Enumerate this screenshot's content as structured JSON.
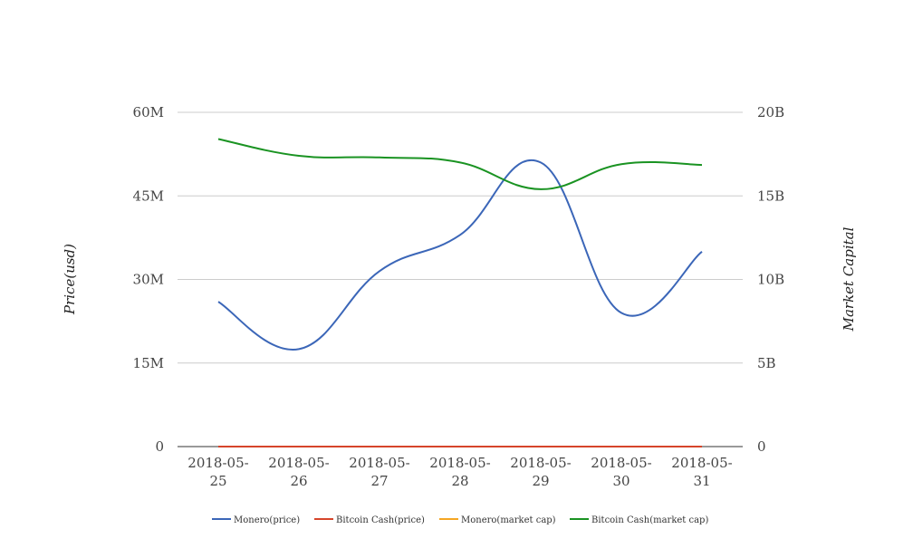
{
  "chart_data": {
    "type": "line",
    "categories": [
      "2018-05-25",
      "2018-05-26",
      "2018-05-27",
      "2018-05-28",
      "2018-05-29",
      "2018-05-30",
      "2018-05-31"
    ],
    "category_lines": [
      [
        "2018-05-",
        "25"
      ],
      [
        "2018-05-",
        "26"
      ],
      [
        "2018-05-",
        "27"
      ],
      [
        "2018-05-",
        "28"
      ],
      [
        "2018-05-",
        "29"
      ],
      [
        "2018-05-",
        "30"
      ],
      [
        "2018-05-",
        "31"
      ]
    ],
    "y_left": {
      "label": "Price(usd)",
      "range": [
        0,
        60000000
      ],
      "ticks": [
        0,
        15000000,
        30000000,
        45000000,
        60000000
      ],
      "tick_labels": [
        "0",
        "15M",
        "30M",
        "45M",
        "60M"
      ]
    },
    "y_right": {
      "label": "Market Capital",
      "range": [
        0,
        20000000000
      ],
      "ticks": [
        0,
        5000000000,
        10000000000,
        15000000000,
        20000000000
      ],
      "tick_labels": [
        "0",
        "5B",
        "10B",
        "15B",
        "20B"
      ]
    },
    "grid": true,
    "legend_position": "bottom",
    "series": [
      {
        "name": "Monero(price)",
        "axis": "left",
        "color": "#3b66b8",
        "values": [
          26000000,
          17500000,
          31500000,
          38000000,
          51000000,
          24000000,
          35000000
        ]
      },
      {
        "name": "Bitcoin Cash(price)",
        "axis": "left",
        "color": "#d6452b",
        "values": [
          1000,
          1000,
          1000,
          1000,
          1000,
          1000,
          1000
        ]
      },
      {
        "name": "Monero(market cap)",
        "axis": "right",
        "color": "#f5a623",
        "values": [
          2000000,
          2000000,
          2000000,
          2000000,
          2000000,
          2000000,
          2000000
        ]
      },
      {
        "name": "Bitcoin Cash(market cap)",
        "axis": "right",
        "color": "#1a9322",
        "values": [
          18400000000,
          17400000000,
          17300000000,
          17000000000,
          15400000000,
          16900000000,
          16850000000
        ]
      }
    ]
  }
}
